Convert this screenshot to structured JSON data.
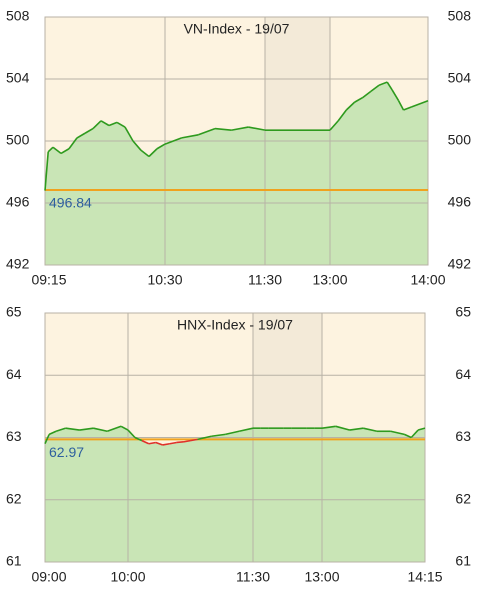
{
  "chart_data": [
    {
      "type": "line",
      "title": "VN-Index - 19/07",
      "x": [
        555,
        557,
        560,
        565,
        570,
        575,
        580,
        585,
        590,
        595,
        600,
        605,
        610,
        615,
        620,
        625,
        630,
        640,
        650,
        660,
        670,
        680,
        690,
        780,
        785,
        790,
        795,
        800,
        805,
        810,
        815,
        818,
        822,
        825,
        830,
        840
      ],
      "values": [
        496.8,
        499.3,
        499.6,
        499.2,
        499.5,
        500.2,
        500.5,
        500.8,
        501.3,
        501.0,
        501.2,
        500.9,
        500.0,
        499.4,
        499.0,
        499.5,
        499.8,
        500.2,
        500.4,
        500.8,
        500.7,
        500.9,
        500.7,
        500.7,
        501.3,
        502.0,
        502.5,
        502.8,
        503.2,
        503.6,
        503.8,
        503.3,
        502.6,
        502.0,
        502.2,
        502.6
      ],
      "color": "#2e9a1e",
      "below_color": "#e0302a",
      "fill": "#c9e5b6",
      "reference": 496.84,
      "reference_color": "#f0a21e",
      "shaded_range": [
        690,
        780
      ],
      "xlim": [
        555,
        840
      ],
      "xticks": [
        {
          "value": 555,
          "label": "09:15"
        },
        {
          "value": 630,
          "label": "10:30"
        },
        {
          "value": 690,
          "label": "11:30"
        },
        {
          "value": 780,
          "label": "13:00"
        },
        {
          "value": 840,
          "label": "14:00"
        }
      ],
      "ylim": [
        492,
        508
      ],
      "yticks": [
        492,
        496,
        500,
        504,
        508
      ],
      "grid": true
    },
    {
      "type": "line",
      "title": "HNX-Index - 19/07",
      "x": [
        540,
        543,
        548,
        555,
        565,
        575,
        585,
        595,
        600,
        605,
        610,
        615,
        620,
        625,
        630,
        635,
        640,
        645,
        650,
        660,
        670,
        680,
        690,
        700,
        710,
        720,
        730,
        740,
        750,
        760,
        770,
        780,
        790,
        800,
        810,
        820,
        830,
        840,
        845,
        850,
        855
      ],
      "values": [
        62.9,
        63.05,
        63.1,
        63.15,
        63.12,
        63.15,
        63.1,
        63.18,
        63.12,
        63.0,
        62.95,
        62.9,
        62.92,
        62.88,
        62.9,
        62.92,
        62.93,
        62.95,
        62.97,
        63.02,
        63.05,
        63.1,
        63.15,
        63.15,
        63.15,
        63.15,
        63.15,
        63.15,
        63.15,
        63.15,
        63.15,
        63.15,
        63.18,
        63.12,
        63.15,
        63.1,
        63.1,
        63.05,
        63.0,
        63.12,
        63.15
      ],
      "color": "#2e9a1e",
      "below_color": "#e0302a",
      "fill": "#c9e5b6",
      "reference": 62.97,
      "reference_color": "#f0a21e",
      "shaded_range": [
        690,
        780
      ],
      "xlim": [
        540,
        855
      ],
      "xticks": [
        {
          "value": 540,
          "label": "09:00"
        },
        {
          "value": 600,
          "label": "10:00"
        },
        {
          "value": 690,
          "label": "11:30"
        },
        {
          "value": 780,
          "label": "13:00"
        },
        {
          "value": 855,
          "label": "14:15"
        }
      ],
      "ylim": [
        61,
        65
      ],
      "yticks": [
        61,
        62,
        63,
        64,
        65
      ],
      "grid": true
    }
  ]
}
